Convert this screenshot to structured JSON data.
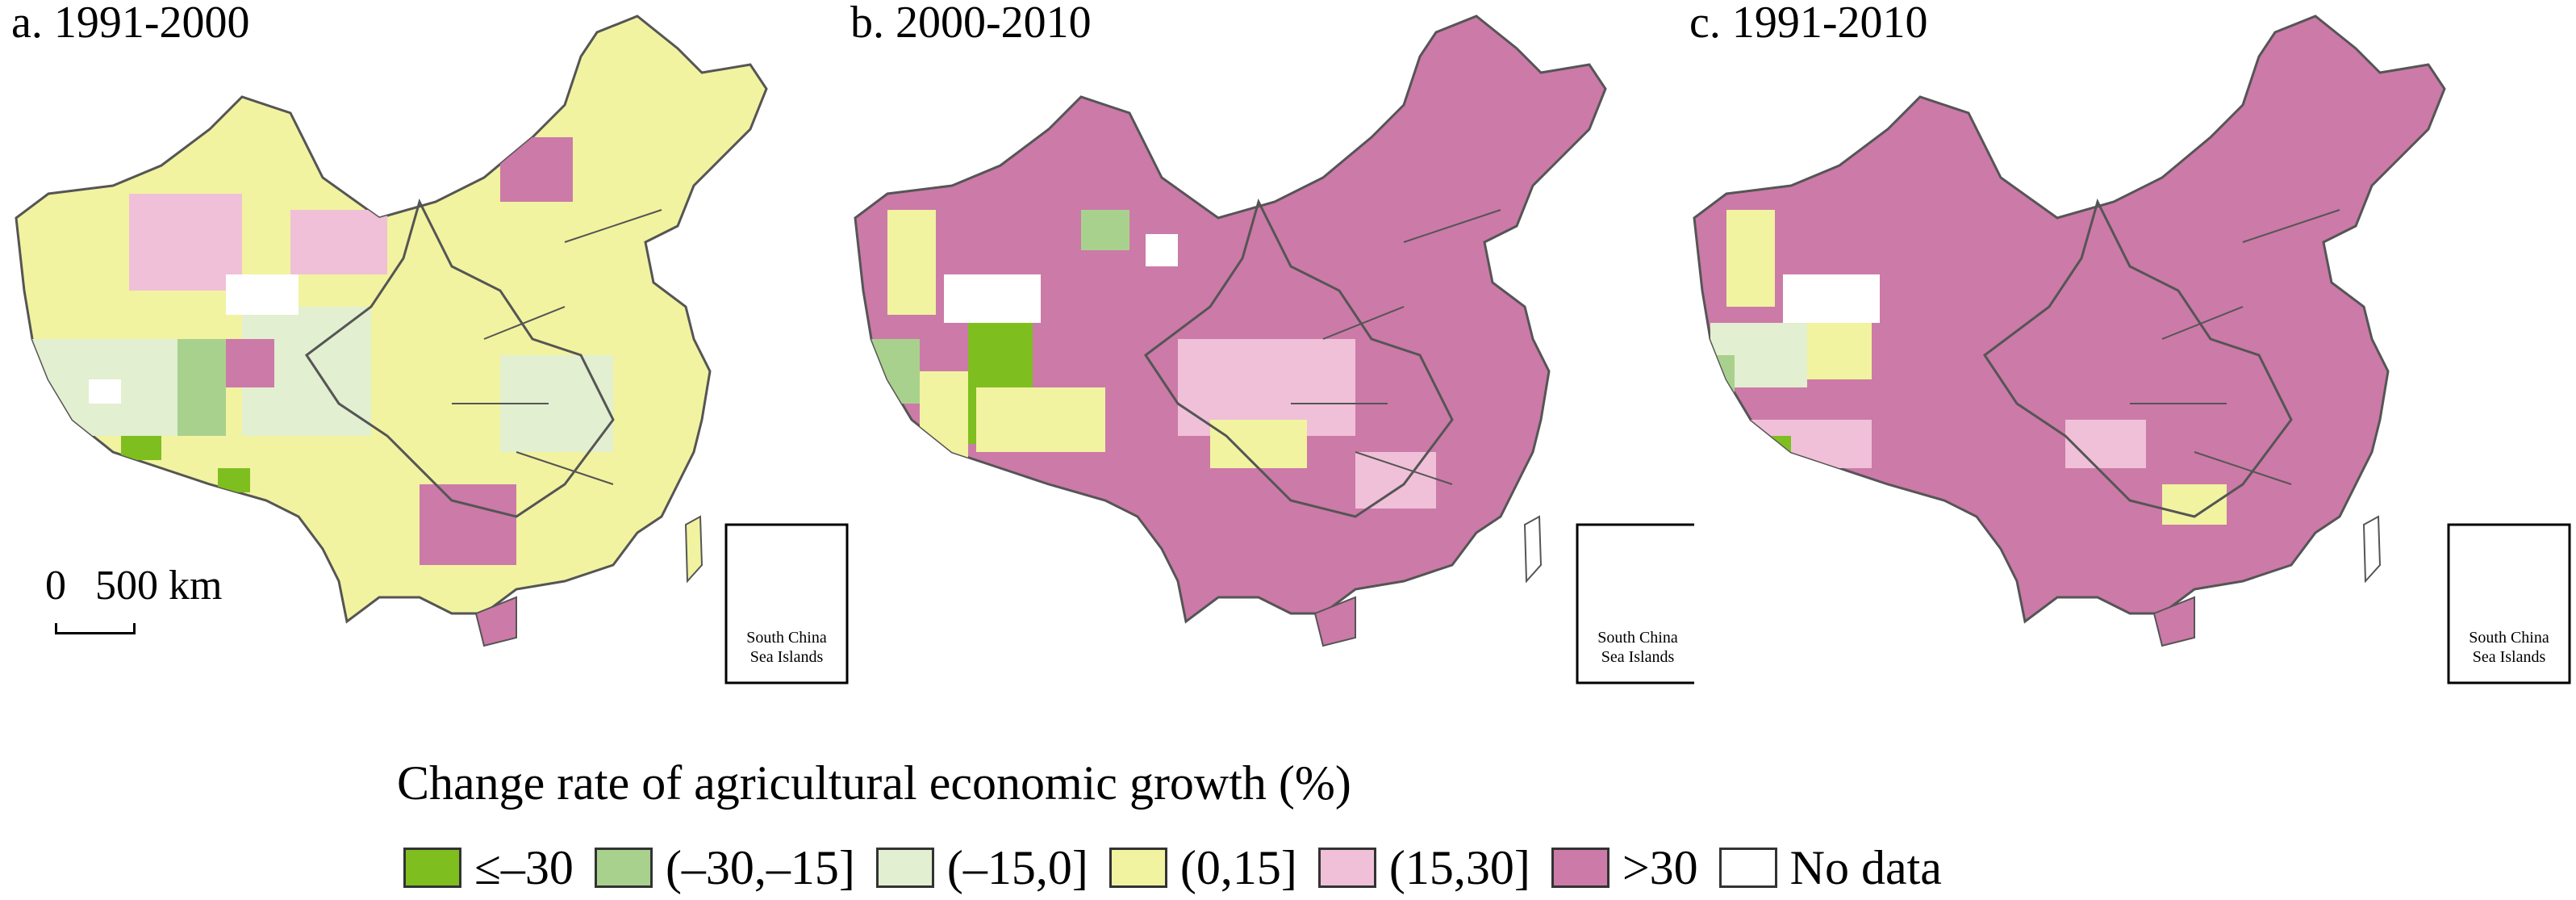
{
  "panels": [
    {
      "title": "a. 1991-2000",
      "inset_label_1": "South China",
      "inset_label_2": "Sea Islands"
    },
    {
      "title": "b. 2000-2010",
      "inset_label_1": "South China",
      "inset_label_2": "Sea Islands"
    },
    {
      "title": "c. 1991-2010",
      "inset_label_1": "South China",
      "inset_label_2": "Sea Islands"
    }
  ],
  "scale_bar": {
    "zero": "0",
    "distance": "500 km"
  },
  "legend": {
    "title": "Change rate of agricultural economic growth (%)",
    "items": [
      {
        "label": "≤–30",
        "color": "#7ebf1f"
      },
      {
        "label": "(–30,–15]",
        "color": "#a9d18e"
      },
      {
        "label": "(–15,0]",
        "color": "#e2efd0"
      },
      {
        "label": "(0,15]",
        "color": "#f1f3a0"
      },
      {
        "label": "(15,30]",
        "color": "#f0c0d8"
      },
      {
        "label": ">30",
        "color": "#cc7aa8"
      },
      {
        "label": "No data",
        "color": "#ffffff"
      }
    ]
  },
  "map_style": {
    "dominant_colors": [
      "#f1f3a0",
      "#cc7aa8",
      "#cc7aa8"
    ],
    "secondary_colors": [
      "#e2efd0",
      "#f1f3a0",
      "#f0c0d8"
    ],
    "border_color": "#555555"
  }
}
